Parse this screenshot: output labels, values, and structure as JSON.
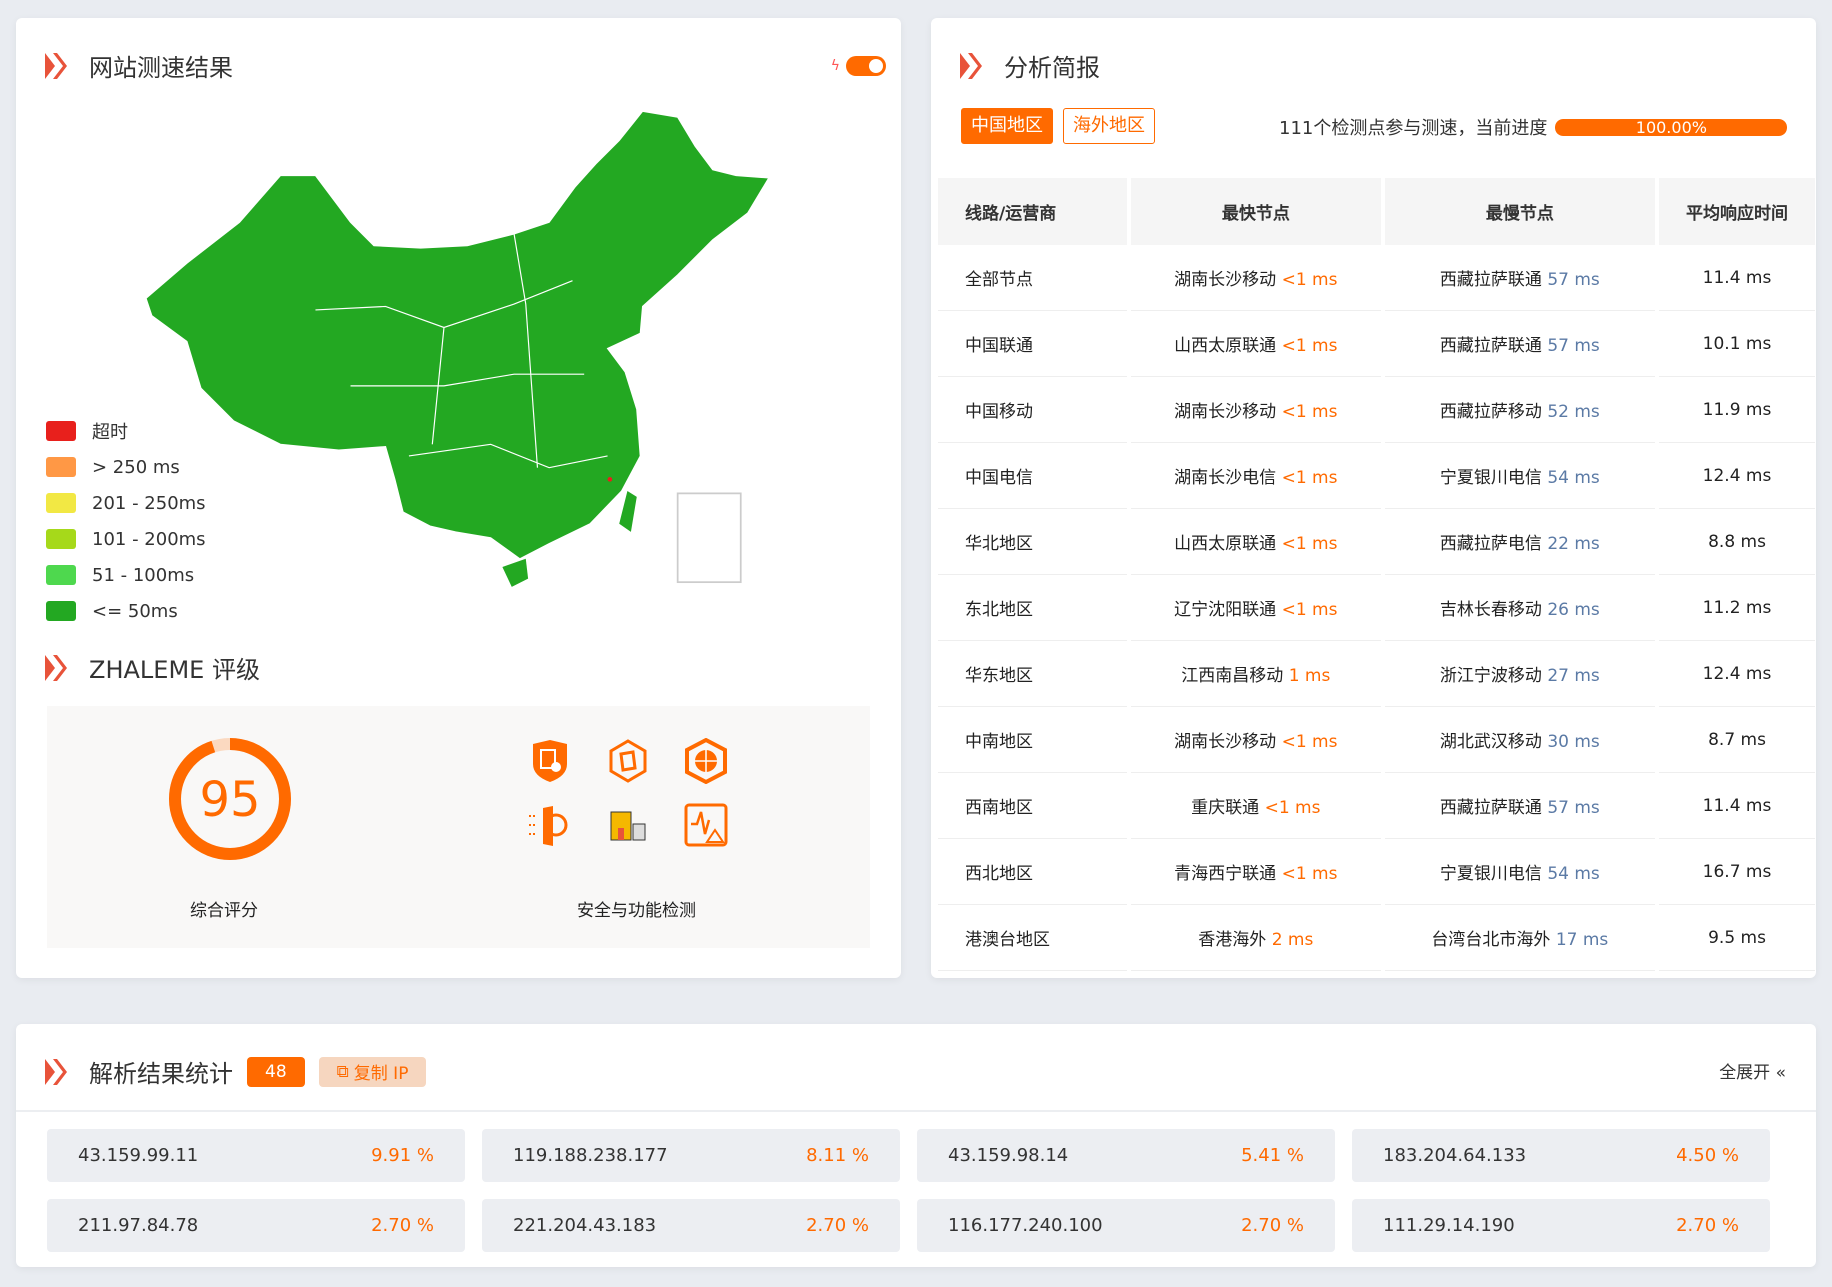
{
  "speed": {
    "title": "网站测速结果",
    "toggle_on": true,
    "legend": [
      {
        "label": "超时",
        "color": "#e8201c"
      },
      {
        "label": "> 250 ms",
        "color": "#ff9845"
      },
      {
        "label": "201 - 250ms",
        "color": "#f2e844"
      },
      {
        "label": "101 - 200ms",
        "color": "#a6d91a"
      },
      {
        "label": "51 - 100ms",
        "color": "#4ed84e"
      },
      {
        "label": "<= 50ms",
        "color": "#23a822"
      }
    ],
    "map_fill": "#23a822"
  },
  "rating": {
    "title": "ZHALEME 评级",
    "score": "95",
    "score_fraction": 0.95,
    "score_label": "综合评分",
    "security_label": "安全与功能检测",
    "icons": [
      "certificate-shield-icon",
      "hexagon-cube-icon",
      "globe-hexagon-icon",
      "globe-firewall-icon",
      "castle-icon",
      "monitor-alert-icon"
    ]
  },
  "analysis": {
    "title": "分析简报",
    "tabs": [
      "中国地区",
      "海外地区"
    ],
    "progress_text": "111个检测点参与测速，当前进度",
    "progress_value": "100.00%",
    "progress_fraction": 1.0,
    "headers": [
      "线路/运营商",
      "最快节点",
      "最慢节点",
      "平均响应时间"
    ],
    "rows": [
      {
        "line": "全部节点",
        "fast": "湖南长沙移动",
        "fast_ms": "<1 ms",
        "slow": "西藏拉萨联通",
        "slow_ms": "57 ms",
        "avg": "11.4 ms"
      },
      {
        "line": "中国联通",
        "fast": "山西太原联通",
        "fast_ms": "<1 ms",
        "slow": "西藏拉萨联通",
        "slow_ms": "57 ms",
        "avg": "10.1 ms"
      },
      {
        "line": "中国移动",
        "fast": "湖南长沙移动",
        "fast_ms": "<1 ms",
        "slow": "西藏拉萨移动",
        "slow_ms": "52 ms",
        "avg": "11.9 ms"
      },
      {
        "line": "中国电信",
        "fast": "湖南长沙电信",
        "fast_ms": "<1 ms",
        "slow": "宁夏银川电信",
        "slow_ms": "54 ms",
        "avg": "12.4 ms"
      },
      {
        "line": "华北地区",
        "fast": "山西太原联通",
        "fast_ms": "<1 ms",
        "slow": "西藏拉萨电信",
        "slow_ms": "22 ms",
        "avg": "8.8 ms"
      },
      {
        "line": "东北地区",
        "fast": "辽宁沈阳联通",
        "fast_ms": "<1 ms",
        "slow": "吉林长春移动",
        "slow_ms": "26 ms",
        "avg": "11.2 ms"
      },
      {
        "line": "华东地区",
        "fast": "江西南昌移动",
        "fast_ms": "1 ms",
        "slow": "浙江宁波移动",
        "slow_ms": "27 ms",
        "avg": "12.4 ms"
      },
      {
        "line": "中南地区",
        "fast": "湖南长沙移动",
        "fast_ms": "<1 ms",
        "slow": "湖北武汉移动",
        "slow_ms": "30 ms",
        "avg": "8.7 ms"
      },
      {
        "line": "西南地区",
        "fast": "重庆联通",
        "fast_ms": "<1 ms",
        "slow": "西藏拉萨联通",
        "slow_ms": "57 ms",
        "avg": "11.4 ms"
      },
      {
        "line": "西北地区",
        "fast": "青海西宁联通",
        "fast_ms": "<1 ms",
        "slow": "宁夏银川电信",
        "slow_ms": "54 ms",
        "avg": "16.7 ms"
      },
      {
        "line": "港澳台地区",
        "fast": "香港海外",
        "fast_ms": "2 ms",
        "slow": "台湾台北市海外",
        "slow_ms": "17 ms",
        "avg": "9.5 ms"
      }
    ]
  },
  "resolve": {
    "title": "解析结果统计",
    "count": "48",
    "copy_label": "复制 IP",
    "expand_label": "全展开",
    "ips": [
      {
        "ip": "43.159.99.11",
        "pct": "9.91 %"
      },
      {
        "ip": "119.188.238.177",
        "pct": "8.11 %"
      },
      {
        "ip": "43.159.98.14",
        "pct": "5.41 %"
      },
      {
        "ip": "183.204.64.133",
        "pct": "4.50 %"
      },
      {
        "ip": "211.97.84.78",
        "pct": "2.70 %"
      },
      {
        "ip": "221.204.43.183",
        "pct": "2.70 %"
      },
      {
        "ip": "116.177.240.100",
        "pct": "2.70 %"
      },
      {
        "ip": "111.29.14.190",
        "pct": "2.70 %"
      }
    ]
  },
  "colors": {
    "accent": "#ff6a00",
    "title_icon": "#e8533a"
  }
}
